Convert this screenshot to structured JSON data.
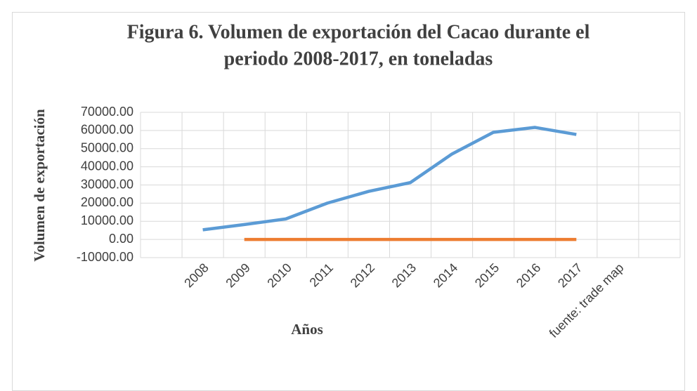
{
  "chart_data": {
    "type": "line",
    "title": "Figura 6. Volumen de exportación del Cacao durante el periodo 2008-2017, en toneladas",
    "title_lines": [
      "Figura 6. Volumen de exportación del Cacao durante el",
      "periodo 2008-2017, en toneladas"
    ],
    "y_label": "Volumen de exportación",
    "x_label": "Años",
    "categories": [
      null,
      "2008",
      "2009",
      "2010",
      "2011",
      "2012",
      "2013",
      "2014",
      "2015",
      "2016",
      "2017",
      "fuente: trade map",
      null
    ],
    "series": [
      {
        "color": "#5b9bd5",
        "values": [
          null,
          5300,
          8200,
          11300,
          20000,
          26500,
          31300,
          47000,
          59000,
          61700,
          57800,
          null,
          null
        ]
      },
      {
        "color": "#ed7d31",
        "values": [
          null,
          null,
          0,
          0,
          0,
          0,
          0,
          0,
          0,
          0,
          0,
          null,
          null
        ]
      }
    ],
    "ylim": [
      -10000,
      70000
    ],
    "yticks": [
      {
        "value": -10000,
        "label": "-10000.00"
      },
      {
        "value": 0,
        "label": "0.00"
      },
      {
        "value": 10000,
        "label": "10000.00"
      },
      {
        "value": 20000,
        "label": "20000.00"
      },
      {
        "value": 30000,
        "label": "30000.00"
      },
      {
        "value": 40000,
        "label": "40000.00"
      },
      {
        "value": 50000,
        "label": "50000.00"
      },
      {
        "value": 60000,
        "label": "60000.00"
      },
      {
        "value": 70000,
        "label": "70000.00"
      }
    ],
    "grid": true
  }
}
